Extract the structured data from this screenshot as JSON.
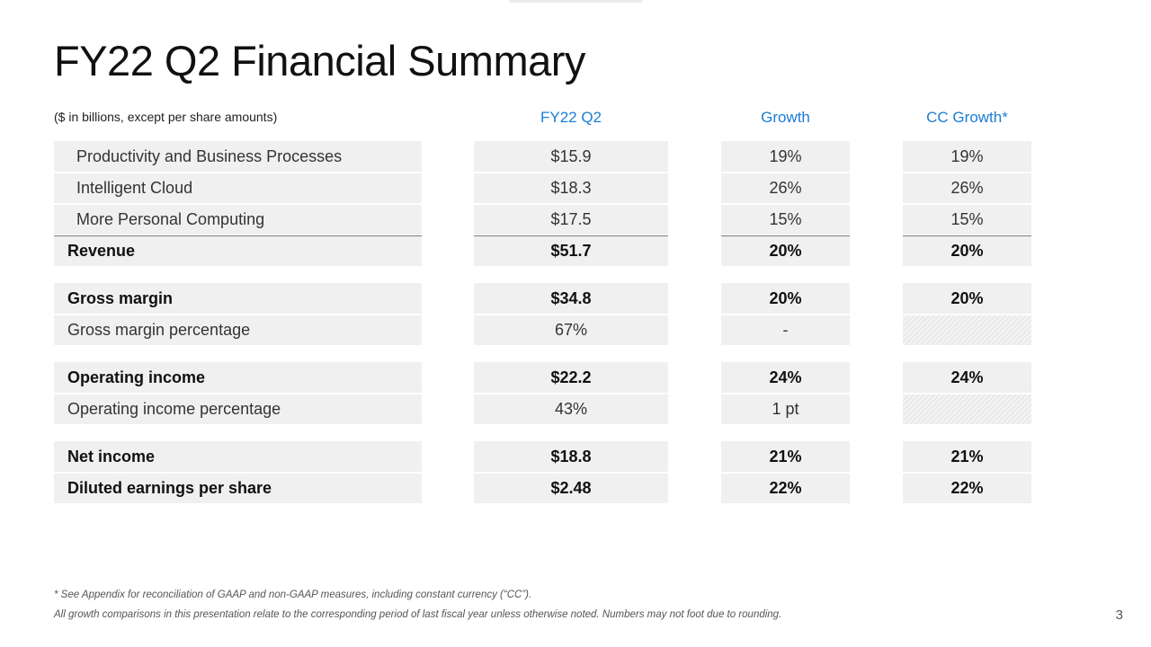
{
  "title": "FY22 Q2 Financial Summary",
  "units_note": "($ in billions, except per share amounts)",
  "columns": [
    "FY22 Q2",
    "Growth",
    "CC Growth*"
  ],
  "groups": [
    {
      "rows": [
        {
          "label": "Productivity and Business Processes",
          "value": "$15.9",
          "growth": "19%",
          "cc_growth": "19%",
          "bold": false,
          "indent": true
        },
        {
          "label": "Intelligent Cloud",
          "value": "$18.3",
          "growth": "26%",
          "cc_growth": "26%",
          "bold": false,
          "indent": true
        },
        {
          "label": "More Personal Computing",
          "value": "$17.5",
          "growth": "15%",
          "cc_growth": "15%",
          "bold": false,
          "indent": true
        },
        {
          "label": "Revenue",
          "value": "$51.7",
          "growth": "20%",
          "cc_growth": "20%",
          "bold": true,
          "indent": false
        }
      ]
    },
    {
      "rows": [
        {
          "label": "Gross margin",
          "value": "$34.8",
          "growth": "20%",
          "cc_growth": "20%",
          "bold": true
        },
        {
          "label": "Gross margin percentage",
          "value": "67%",
          "growth": "-",
          "cc_growth": "",
          "bold": false
        }
      ]
    },
    {
      "rows": [
        {
          "label": "Operating income",
          "value": "$22.2",
          "growth": "24%",
          "cc_growth": "24%",
          "bold": true
        },
        {
          "label": "Operating income percentage",
          "value": "43%",
          "growth": "1 pt",
          "cc_growth": "",
          "bold": false
        }
      ]
    },
    {
      "rows": [
        {
          "label": "Net income",
          "value": "$18.8",
          "growth": "21%",
          "cc_growth": "21%",
          "bold": true
        },
        {
          "label": "Diluted earnings per share",
          "value": "$2.48",
          "growth": "22%",
          "cc_growth": "22%",
          "bold": true
        }
      ]
    }
  ],
  "footnotes": [
    "* See Appendix for reconciliation of GAAP and non-GAAP measures, including constant currency (“CC”).",
    "All growth comparisons in this presentation relate to the corresponding period of last fiscal year unless otherwise noted. Numbers may not foot due to rounding."
  ],
  "page_number": "3"
}
